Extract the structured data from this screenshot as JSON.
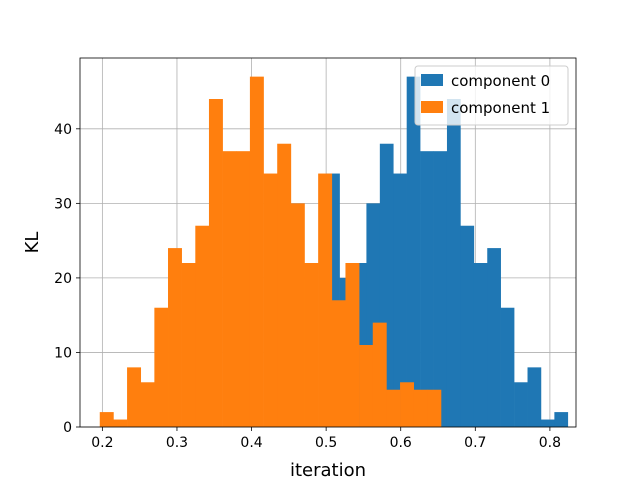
{
  "chart_data": {
    "type": "bar",
    "title": "",
    "xlabel": "iteration",
    "ylabel": "KL",
    "xlim": [
      0.17,
      0.835
    ],
    "ylim": [
      0,
      49.5
    ],
    "xticks": [
      "0.2",
      "0.3",
      "0.4",
      "0.5",
      "0.6",
      "0.7",
      "0.8"
    ],
    "yticks": [
      "0",
      "10",
      "20",
      "30",
      "40"
    ],
    "grid": true,
    "legend_position": "top-right",
    "series": [
      {
        "name": "component 0",
        "color": "#1f77b4",
        "bin_start": 0.5,
        "bin_width": 0.018,
        "values": [
          34,
          20,
          22,
          30,
          38,
          34,
          47,
          37,
          37,
          44,
          27,
          22,
          24,
          16,
          6,
          8,
          1,
          2
        ]
      },
      {
        "name": "component 1",
        "color": "#ff7f0e",
        "bin_start": 0.1965,
        "bin_width": 0.0183,
        "values": [
          2,
          1,
          8,
          6,
          16,
          24,
          22,
          27,
          44,
          37,
          37,
          47,
          34,
          38,
          30,
          22,
          34,
          17,
          22,
          11,
          14,
          5,
          6,
          5,
          5
        ]
      }
    ]
  }
}
